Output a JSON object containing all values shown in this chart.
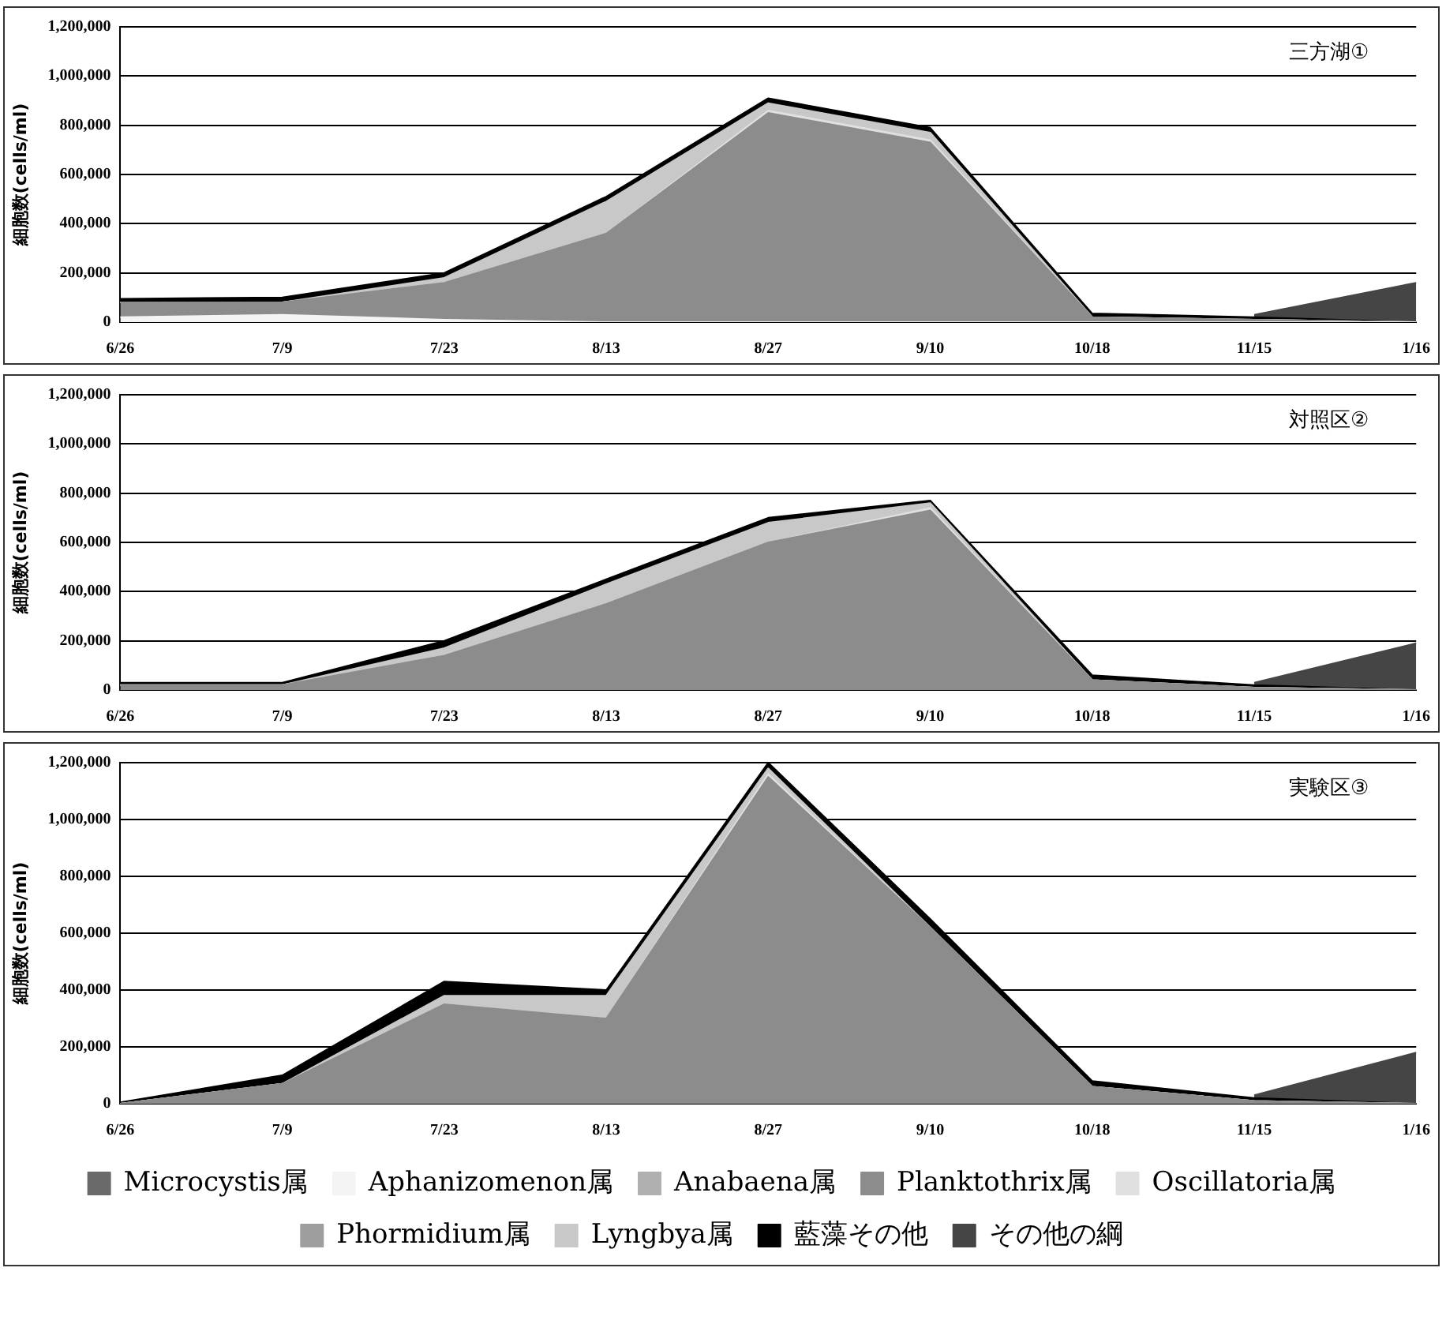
{
  "chart_data": [
    {
      "type": "area",
      "stacked": true,
      "title": "三方湖①",
      "ylabel": "細胞数(cells/ml)",
      "categories": [
        "6/26",
        "7/9",
        "7/23",
        "8/13",
        "8/27",
        "9/10",
        "10/18",
        "11/15",
        "1/16"
      ],
      "ylim": [
        0,
        1200000
      ],
      "yticks": [
        {
          "value": 0,
          "label": "0"
        },
        {
          "value": 200000,
          "label": "200,000"
        },
        {
          "value": 400000,
          "label": "400,000"
        },
        {
          "value": 600000,
          "label": "600,000"
        },
        {
          "value": 800000,
          "label": "800,000"
        },
        {
          "value": 1000000,
          "label": "1,000,000"
        },
        {
          "value": 1200000,
          "label": "1,200,000"
        }
      ],
      "grid": "y",
      "legend": false,
      "series": [
        {
          "color": "#6a6a6a",
          "values": [
            null,
            null,
            null,
            null,
            null,
            null,
            null,
            null,
            null
          ]
        },
        {
          "color": "#f4f4f4",
          "values": [
            20000,
            30000,
            10000,
            0,
            0,
            0,
            0,
            0,
            0
          ]
        },
        {
          "color": "#b0b0b0",
          "values": [
            null,
            null,
            null,
            null,
            null,
            null,
            null,
            null,
            null
          ]
        },
        {
          "color": "#8c8c8c",
          "values": [
            60000,
            50000,
            150000,
            360000,
            850000,
            730000,
            20000,
            10000,
            0
          ]
        },
        {
          "color": "#e0e0e0",
          "values": [
            0,
            0,
            0,
            0,
            10000,
            10000,
            0,
            0,
            0
          ]
        },
        {
          "color": "#9e9e9e",
          "values": [
            null,
            null,
            null,
            null,
            null,
            null,
            null,
            null,
            null
          ]
        },
        {
          "color": "#c8c8c8",
          "values": [
            0,
            0,
            20000,
            130000,
            30000,
            30000,
            0,
            0,
            0
          ]
        },
        {
          "color": "#000000",
          "values": [
            15000,
            20000,
            20000,
            20000,
            20000,
            20000,
            15000,
            10000,
            0
          ]
        },
        {
          "color": "#454545",
          "values": [
            null,
            null,
            null,
            null,
            null,
            null,
            null,
            10000,
            160000
          ]
        }
      ]
    },
    {
      "type": "area",
      "stacked": true,
      "title": "対照区②",
      "ylabel": "細胞数(cells/ml)",
      "categories": [
        "6/26",
        "7/9",
        "7/23",
        "8/13",
        "8/27",
        "9/10",
        "10/18",
        "11/15",
        "1/16"
      ],
      "ylim": [
        0,
        1200000
      ],
      "yticks": [
        {
          "value": 0,
          "label": "0"
        },
        {
          "value": 200000,
          "label": "200,000"
        },
        {
          "value": 400000,
          "label": "400,000"
        },
        {
          "value": 600000,
          "label": "600,000"
        },
        {
          "value": 800000,
          "label": "800,000"
        },
        {
          "value": 1000000,
          "label": "1,000,000"
        },
        {
          "value": 1200000,
          "label": "1,200,000"
        }
      ],
      "grid": "y",
      "legend": false,
      "series": [
        {
          "color": "#6a6a6a",
          "values": [
            null,
            null,
            null,
            null,
            null,
            null,
            null,
            null,
            null
          ]
        },
        {
          "color": "#f4f4f4",
          "values": [
            null,
            null,
            null,
            null,
            null,
            null,
            null,
            null,
            null
          ]
        },
        {
          "color": "#b0b0b0",
          "values": [
            null,
            null,
            null,
            null,
            null,
            null,
            null,
            null,
            null
          ]
        },
        {
          "color": "#8c8c8c",
          "values": [
            20000,
            20000,
            140000,
            350000,
            600000,
            730000,
            40000,
            10000,
            0
          ]
        },
        {
          "color": "#e0e0e0",
          "values": [
            0,
            0,
            0,
            0,
            0,
            10000,
            0,
            0,
            0
          ]
        },
        {
          "color": "#9e9e9e",
          "values": [
            null,
            null,
            null,
            null,
            null,
            null,
            null,
            null,
            null
          ]
        },
        {
          "color": "#c8c8c8",
          "values": [
            0,
            0,
            30000,
            80000,
            80000,
            20000,
            0,
            0,
            0
          ]
        },
        {
          "color": "#000000",
          "values": [
            10000,
            10000,
            30000,
            20000,
            20000,
            10000,
            20000,
            10000,
            0
          ]
        },
        {
          "color": "#454545",
          "values": [
            null,
            null,
            null,
            null,
            null,
            null,
            null,
            10000,
            190000
          ]
        }
      ]
    },
    {
      "type": "area",
      "stacked": true,
      "title": "実験区③",
      "ylabel": "細胞数(cells/ml)",
      "categories": [
        "6/26",
        "7/9",
        "7/23",
        "8/13",
        "8/27",
        "9/10",
        "10/18",
        "11/15",
        "1/16"
      ],
      "ylim": [
        0,
        1200000
      ],
      "yticks": [
        {
          "value": 0,
          "label": "0"
        },
        {
          "value": 200000,
          "label": "200,000"
        },
        {
          "value": 400000,
          "label": "400,000"
        },
        {
          "value": 600000,
          "label": "600,000"
        },
        {
          "value": 800000,
          "label": "800,000"
        },
        {
          "value": 1000000,
          "label": "1,000,000"
        },
        {
          "value": 1200000,
          "label": "1,200,000"
        }
      ],
      "grid": "y",
      "legend": "bottom",
      "series": [
        {
          "name": "Microcystis属",
          "color": "#6a6a6a",
          "values": [
            null,
            null,
            null,
            null,
            null,
            null,
            null,
            null,
            null
          ]
        },
        {
          "name": "Aphanizomenon属",
          "color": "#f4f4f4",
          "values": [
            null,
            null,
            null,
            null,
            null,
            null,
            null,
            null,
            null
          ]
        },
        {
          "name": "Anabaena属",
          "color": "#b0b0b0",
          "values": [
            null,
            null,
            null,
            null,
            null,
            null,
            null,
            null,
            null
          ]
        },
        {
          "name": "Planktothrix属",
          "color": "#8c8c8c",
          "values": [
            0,
            70000,
            350000,
            300000,
            1150000,
            620000,
            60000,
            10000,
            0
          ]
        },
        {
          "name": "Oscillatoria属",
          "color": "#e0e0e0",
          "values": [
            0,
            0,
            0,
            0,
            10000,
            0,
            0,
            0,
            0
          ]
        },
        {
          "name": "Phormidium属",
          "color": "#9e9e9e",
          "values": [
            null,
            null,
            null,
            null,
            null,
            null,
            null,
            null,
            null
          ]
        },
        {
          "name": "Lyngbya属",
          "color": "#c8c8c8",
          "values": [
            0,
            0,
            30000,
            80000,
            20000,
            0,
            0,
            0,
            0
          ]
        },
        {
          "name": "藍藻その他",
          "color": "#000000",
          "values": [
            5000,
            30000,
            50000,
            20000,
            20000,
            30000,
            20000,
            10000,
            0
          ]
        },
        {
          "name": "その他の綱",
          "color": "#454545",
          "values": [
            null,
            null,
            null,
            null,
            null,
            null,
            null,
            10000,
            180000
          ]
        }
      ]
    }
  ]
}
